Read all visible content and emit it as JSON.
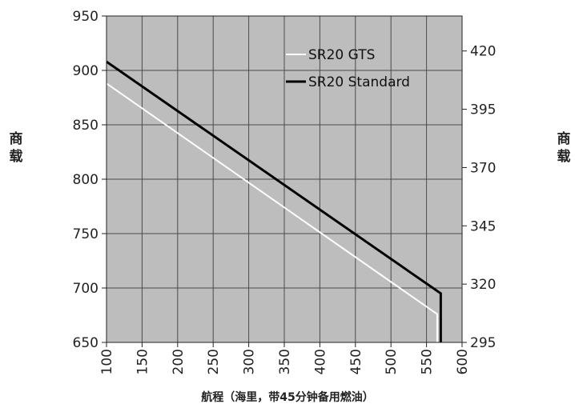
{
  "chart_data": {
    "type": "line",
    "title": "",
    "xlabel": "航程（海里，带45分钟备用燃油）",
    "ylabel_left": "商载",
    "ylabel_right": "商载",
    "xlim": [
      100,
      600
    ],
    "ylim_left": [
      650,
      950
    ],
    "ylim_right": [
      295,
      435
    ],
    "x_ticks": [
      100,
      150,
      200,
      250,
      300,
      350,
      400,
      450,
      500,
      550,
      600
    ],
    "y_ticks_left": [
      650,
      700,
      750,
      800,
      850,
      900,
      950
    ],
    "y_ticks_right": [
      295,
      320,
      345,
      370,
      395,
      420
    ],
    "grid": true,
    "legend_position": "top-right",
    "series": [
      {
        "name": "SR20 GTS",
        "color": "#ffffff",
        "points": [
          [
            100,
            888
          ],
          [
            565,
            676
          ],
          [
            565,
            650
          ]
        ]
      },
      {
        "name": "SR20 Standard",
        "color": "#000000",
        "points": [
          [
            100,
            908
          ],
          [
            570,
            695
          ],
          [
            570,
            650
          ]
        ]
      }
    ],
    "colors": {
      "plot_bg": "#bdbdbd",
      "grid": "#4a4a4a"
    }
  }
}
